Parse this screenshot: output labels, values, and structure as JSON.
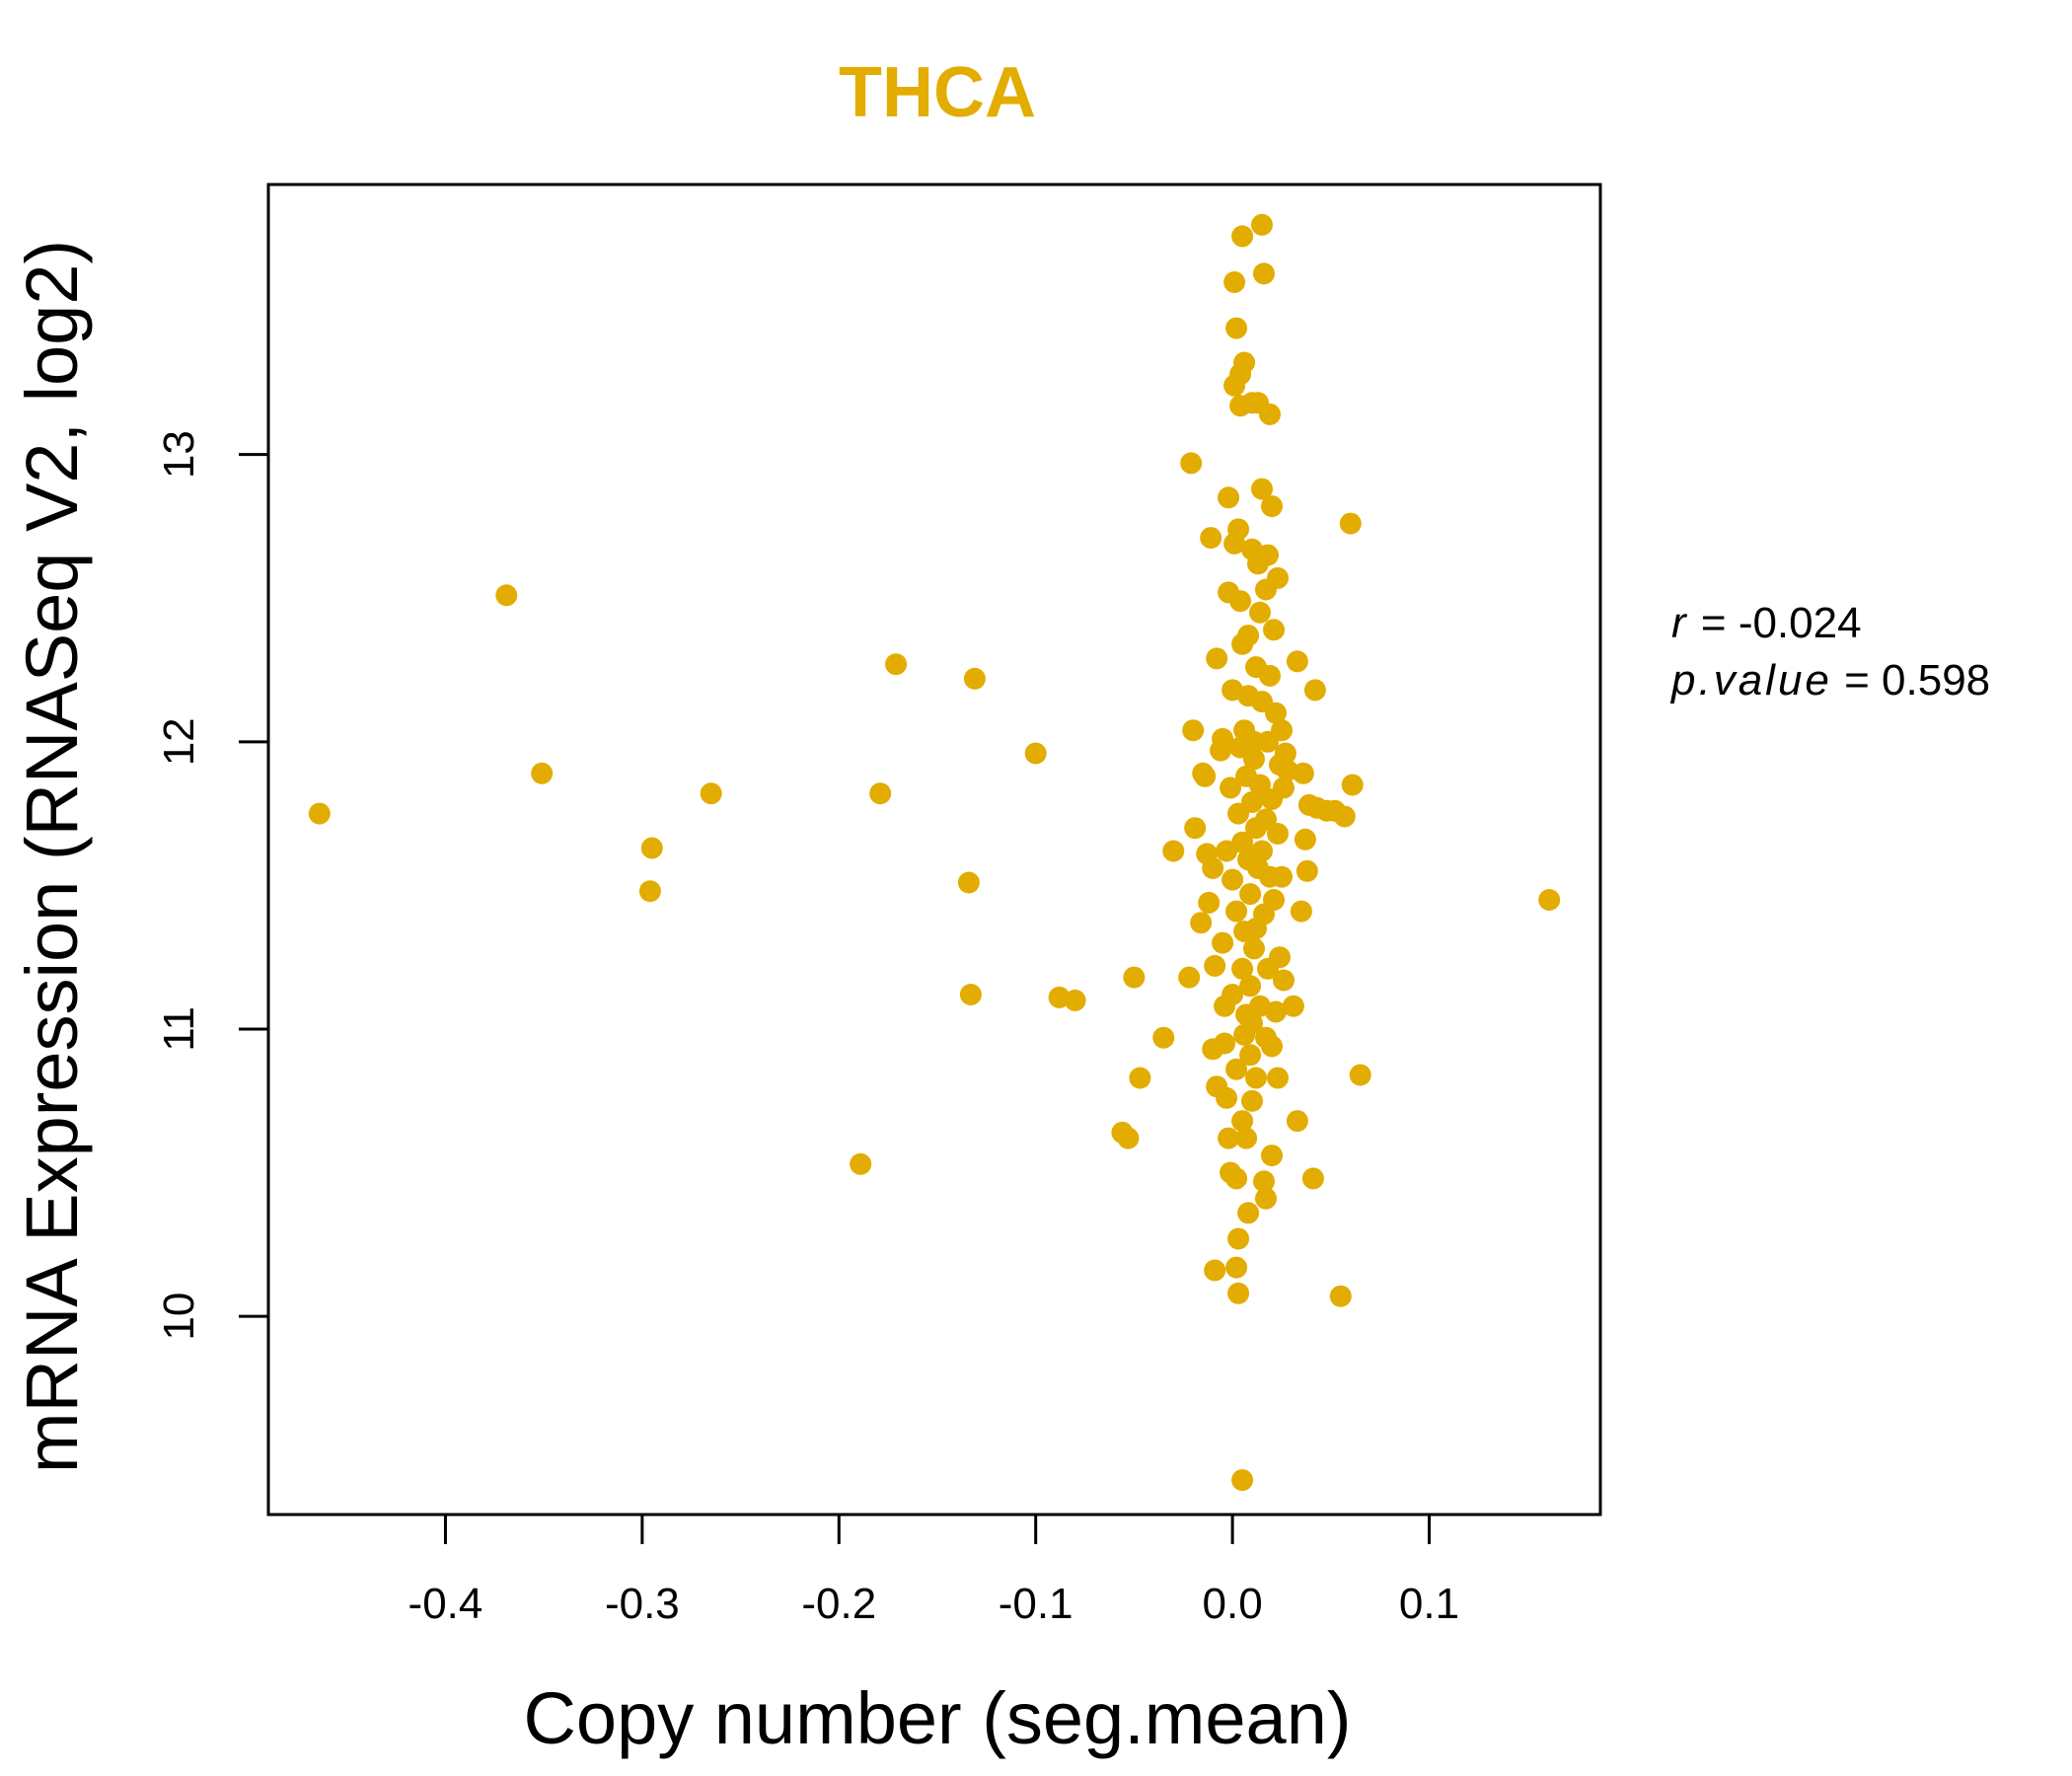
{
  "chart_data": {
    "type": "scatter",
    "title": "THCA",
    "xlabel": "Copy number (seg.mean)",
    "ylabel": "mRNA Expression (RNASeq V2, log2)",
    "xlim": [
      -0.49,
      0.187
    ],
    "ylim": [
      9.31,
      13.94
    ],
    "x_ticks": [
      -0.4,
      -0.3,
      -0.2,
      -0.1,
      0.0,
      0.1
    ],
    "x_tick_labels": [
      "-0.4",
      "-0.3",
      "-0.2",
      "-0.1",
      "0.0",
      "0.1"
    ],
    "y_ticks": [
      10,
      11,
      12,
      13
    ],
    "y_tick_labels": [
      "10",
      "11",
      "12",
      "13"
    ],
    "point_color": "#E3AC00",
    "title_color": "#E3AC00",
    "stats": {
      "r_label": "r",
      "r_value": "-0.024",
      "p_label": "p.value",
      "p_value": "0.598"
    },
    "points": [
      [
        -0.464,
        11.75
      ],
      [
        -0.369,
        12.51
      ],
      [
        -0.351,
        11.89
      ],
      [
        -0.295,
        11.63
      ],
      [
        -0.296,
        11.48
      ],
      [
        -0.265,
        11.82
      ],
      [
        -0.189,
        10.53
      ],
      [
        -0.179,
        11.82
      ],
      [
        -0.171,
        12.27
      ],
      [
        -0.134,
        11.51
      ],
      [
        -0.133,
        11.12
      ],
      [
        -0.131,
        12.22
      ],
      [
        -0.1,
        11.96
      ],
      [
        -0.088,
        11.11
      ],
      [
        -0.08,
        11.1
      ],
      [
        -0.056,
        10.64
      ],
      [
        -0.053,
        10.62
      ],
      [
        -0.05,
        11.18
      ],
      [
        -0.047,
        10.83
      ],
      [
        -0.035,
        10.97
      ],
      [
        -0.03,
        11.62
      ],
      [
        -0.022,
        11.18
      ],
      [
        -0.021,
        12.97
      ],
      [
        -0.02,
        12.04
      ],
      [
        -0.019,
        11.7
      ],
      [
        -0.016,
        11.37
      ],
      [
        -0.015,
        11.89
      ],
      [
        -0.014,
        11.88
      ],
      [
        -0.013,
        11.61
      ],
      [
        -0.012,
        11.44
      ],
      [
        -0.011,
        12.71
      ],
      [
        -0.01,
        11.56
      ],
      [
        -0.01,
        10.93
      ],
      [
        -0.009,
        11.22
      ],
      [
        -0.009,
        10.16
      ],
      [
        -0.008,
        10.8
      ],
      [
        -0.008,
        12.29
      ],
      [
        -0.006,
        11.97
      ],
      [
        -0.005,
        12.01
      ],
      [
        -0.005,
        11.3
      ],
      [
        -0.004,
        11.08
      ],
      [
        -0.004,
        10.95
      ],
      [
        -0.003,
        10.76
      ],
      [
        -0.003,
        11.62
      ],
      [
        -0.002,
        12.52
      ],
      [
        -0.002,
        12.85
      ],
      [
        -0.002,
        10.62
      ],
      [
        -0.001,
        10.5
      ],
      [
        -0.001,
        11.84
      ],
      [
        0.0,
        11.52
      ],
      [
        0.0,
        11.12
      ],
      [
        0.0,
        12.18
      ],
      [
        0.001,
        12.69
      ],
      [
        0.001,
        13.6
      ],
      [
        0.001,
        13.24
      ],
      [
        0.002,
        13.44
      ],
      [
        0.002,
        11.41
      ],
      [
        0.002,
        10.86
      ],
      [
        0.002,
        10.48
      ],
      [
        0.002,
        10.17
      ],
      [
        0.003,
        10.08
      ],
      [
        0.003,
        10.27
      ],
      [
        0.003,
        12.74
      ],
      [
        0.003,
        11.75
      ],
      [
        0.004,
        12.49
      ],
      [
        0.004,
        13.28
      ],
      [
        0.004,
        13.17
      ],
      [
        0.004,
        11.98
      ],
      [
        0.005,
        13.76
      ],
      [
        0.005,
        12.34
      ],
      [
        0.005,
        11.65
      ],
      [
        0.005,
        11.21
      ],
      [
        0.005,
        10.68
      ],
      [
        0.005,
        9.43
      ],
      [
        0.006,
        13.32
      ],
      [
        0.006,
        12.04
      ],
      [
        0.006,
        11.34
      ],
      [
        0.006,
        10.98
      ],
      [
        0.007,
        11.88
      ],
      [
        0.007,
        11.05
      ],
      [
        0.007,
        10.62
      ],
      [
        0.008,
        12.16
      ],
      [
        0.008,
        11.59
      ],
      [
        0.008,
        12.37
      ],
      [
        0.008,
        10.36
      ],
      [
        0.009,
        11.47
      ],
      [
        0.009,
        11.15
      ],
      [
        0.009,
        10.91
      ],
      [
        0.01,
        12.67
      ],
      [
        0.01,
        13.18
      ],
      [
        0.01,
        11.79
      ],
      [
        0.01,
        11.02
      ],
      [
        0.01,
        10.75
      ],
      [
        0.011,
        11.94
      ],
      [
        0.011,
        11.28
      ],
      [
        0.011,
        12.0
      ],
      [
        0.012,
        12.26
      ],
      [
        0.012,
        11.7
      ],
      [
        0.012,
        11.35
      ],
      [
        0.012,
        10.83
      ],
      [
        0.013,
        13.18
      ],
      [
        0.013,
        12.62
      ],
      [
        0.013,
        11.56
      ],
      [
        0.014,
        12.45
      ],
      [
        0.014,
        11.85
      ],
      [
        0.014,
        11.08
      ],
      [
        0.015,
        12.88
      ],
      [
        0.015,
        13.8
      ],
      [
        0.015,
        12.14
      ],
      [
        0.015,
        11.62
      ],
      [
        0.016,
        13.63
      ],
      [
        0.016,
        11.4
      ],
      [
        0.016,
        10.47
      ],
      [
        0.017,
        10.41
      ],
      [
        0.017,
        12.53
      ],
      [
        0.017,
        11.73
      ],
      [
        0.017,
        10.97
      ],
      [
        0.018,
        12.65
      ],
      [
        0.018,
        12.0
      ],
      [
        0.018,
        11.21
      ],
      [
        0.019,
        13.14
      ],
      [
        0.019,
        12.23
      ],
      [
        0.019,
        11.53
      ],
      [
        0.02,
        10.94
      ],
      [
        0.02,
        12.82
      ],
      [
        0.02,
        11.8
      ],
      [
        0.02,
        10.56
      ],
      [
        0.021,
        12.39
      ],
      [
        0.021,
        11.45
      ],
      [
        0.022,
        12.1
      ],
      [
        0.022,
        11.06
      ],
      [
        0.023,
        12.57
      ],
      [
        0.023,
        11.68
      ],
      [
        0.023,
        10.83
      ],
      [
        0.024,
        11.92
      ],
      [
        0.024,
        11.25
      ],
      [
        0.025,
        12.04
      ],
      [
        0.025,
        11.53
      ],
      [
        0.026,
        11.84
      ],
      [
        0.026,
        11.17
      ],
      [
        0.027,
        11.96
      ],
      [
        0.028,
        11.9
      ],
      [
        0.031,
        11.08
      ],
      [
        0.033,
        10.68
      ],
      [
        0.033,
        12.28
      ],
      [
        0.035,
        11.41
      ],
      [
        0.036,
        11.89
      ],
      [
        0.037,
        11.66
      ],
      [
        0.038,
        11.55
      ],
      [
        0.039,
        11.78
      ],
      [
        0.041,
        10.48
      ],
      [
        0.042,
        12.18
      ],
      [
        0.043,
        11.77
      ],
      [
        0.048,
        11.76
      ],
      [
        0.052,
        11.76
      ],
      [
        0.055,
        10.07
      ],
      [
        0.057,
        11.74
      ],
      [
        0.06,
        12.76
      ],
      [
        0.061,
        11.85
      ],
      [
        0.065,
        10.84
      ],
      [
        0.161,
        11.45
      ]
    ]
  }
}
